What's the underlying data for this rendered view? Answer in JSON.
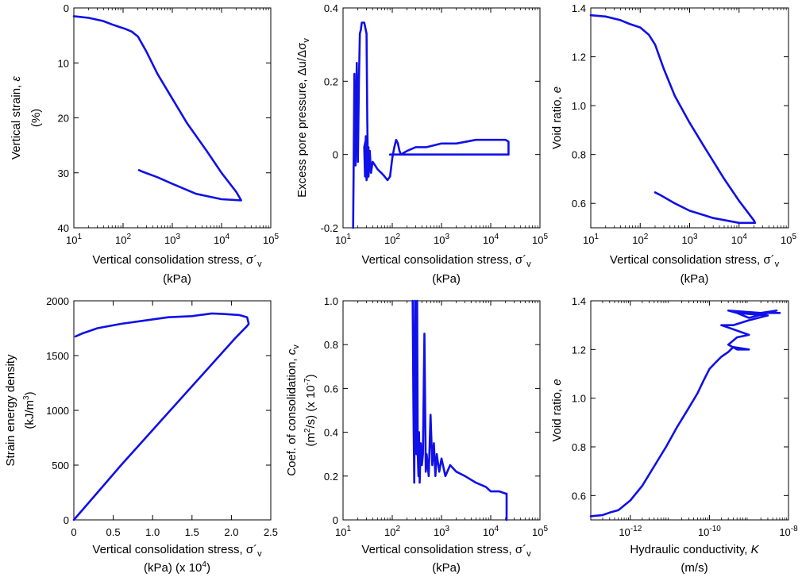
{
  "style": {
    "line_color": "#1010e8",
    "axis_color": "#000000",
    "background": "#ffffff"
  },
  "chart_data": [
    {
      "id": "p1",
      "type": "line",
      "xscale": "log",
      "xlim": [
        10,
        100000
      ],
      "yscale": "linear",
      "ylim": [
        0,
        40
      ],
      "yinvert": true,
      "xticks": [
        {
          "v": 10,
          "base": "10",
          "exp": "1"
        },
        {
          "v": 100,
          "base": "10",
          "exp": "2"
        },
        {
          "v": 1000,
          "base": "10",
          "exp": "3"
        },
        {
          "v": 10000,
          "base": "10",
          "exp": "4"
        },
        {
          "v": 100000,
          "base": "10",
          "exp": "5"
        }
      ],
      "yticks": [
        {
          "v": 0,
          "t": "0"
        },
        {
          "v": 10,
          "t": "10"
        },
        {
          "v": 20,
          "t": "20"
        },
        {
          "v": 30,
          "t": "30"
        },
        {
          "v": 40,
          "t": "40"
        }
      ],
      "xlabel": [
        {
          "type": "sigma",
          "text": "Vertical consolidation stress, σ´",
          "sub": "v"
        },
        {
          "text": "(kPa)"
        }
      ],
      "ylabel": [
        {
          "text": "Vertical strain, ",
          "italic": "ε"
        },
        {
          "text": "(%)"
        }
      ],
      "grid": false,
      "series": [
        {
          "x": [
            10,
            20,
            40,
            60,
            80,
            110,
            150,
            200,
            300,
            500,
            1000,
            2000,
            5000,
            10000,
            20000,
            25000,
            10000,
            3000,
            1000,
            500,
            250,
            210
          ],
          "y": [
            1.5,
            1.8,
            2.4,
            3.0,
            3.4,
            3.8,
            4.3,
            5.2,
            8.0,
            12.0,
            16.5,
            21.0,
            26.0,
            30.0,
            33.5,
            35.0,
            34.8,
            33.8,
            32.0,
            30.8,
            29.8,
            29.5
          ]
        }
      ]
    },
    {
      "id": "p2",
      "type": "line",
      "xscale": "log",
      "xlim": [
        10,
        100000
      ],
      "yscale": "linear",
      "ylim": [
        -0.2,
        0.4
      ],
      "xticks": [
        {
          "v": 10,
          "base": "10",
          "exp": "1"
        },
        {
          "v": 100,
          "base": "10",
          "exp": "2"
        },
        {
          "v": 1000,
          "base": "10",
          "exp": "3"
        },
        {
          "v": 10000,
          "base": "10",
          "exp": "4"
        },
        {
          "v": 100000,
          "base": "10",
          "exp": "5"
        }
      ],
      "yticks": [
        {
          "v": -0.2,
          "t": "-0.2"
        },
        {
          "v": 0,
          "t": "0"
        },
        {
          "v": 0.2,
          "t": "0.2"
        },
        {
          "v": 0.4,
          "t": "0.4"
        }
      ],
      "xlabel": [
        {
          "type": "sigma",
          "text": "Vertical consolidation stress, σ´",
          "sub": "v"
        },
        {
          "text": "(kPa)"
        }
      ],
      "ylabel": [
        {
          "text": "Excess pore pressure, Δu/Δσ",
          "sub": "v"
        }
      ],
      "grid": false,
      "series": [
        {
          "x": [
            16,
            16.5,
            17,
            17.5,
            18,
            19,
            20,
            21,
            22,
            23,
            24,
            25,
            26,
            27,
            28,
            30,
            31,
            32,
            33,
            32,
            30,
            29,
            28,
            27,
            29,
            30,
            31,
            33,
            35,
            37,
            40,
            45,
            50,
            60,
            70,
            80,
            90,
            100,
            110,
            120,
            130,
            140,
            150,
            200,
            300,
            500,
            1000,
            2000,
            5000,
            10000,
            20000,
            23000,
            23000,
            10000,
            1000,
            100,
            90
          ],
          "y": [
            -0.2,
            0.0,
            0.22,
            0.05,
            -0.03,
            0.25,
            -0.02,
            0.2,
            0.33,
            0.34,
            0.36,
            0.36,
            0.36,
            0.36,
            0.35,
            0.33,
            0.1,
            -0.03,
            0.02,
            -0.05,
            -0.07,
            0.05,
            -0.06,
            0.02,
            0.04,
            -0.04,
            0.03,
            -0.06,
            0.01,
            -0.05,
            -0.02,
            -0.03,
            -0.04,
            -0.05,
            -0.06,
            -0.07,
            -0.06,
            -0.01,
            0.02,
            0.04,
            0.03,
            0.01,
            0.0,
            0.01,
            0.02,
            0.02,
            0.03,
            0.03,
            0.04,
            0.04,
            0.04,
            0.035,
            0.0,
            0.0,
            0.0,
            0.0,
            0.0
          ]
        }
      ]
    },
    {
      "id": "p3",
      "type": "line",
      "xscale": "log",
      "xlim": [
        10,
        100000
      ],
      "yscale": "linear",
      "ylim": [
        0.5,
        1.4
      ],
      "xticks": [
        {
          "v": 10,
          "base": "10",
          "exp": "1"
        },
        {
          "v": 100,
          "base": "10",
          "exp": "2"
        },
        {
          "v": 1000,
          "base": "10",
          "exp": "3"
        },
        {
          "v": 10000,
          "base": "10",
          "exp": "4"
        },
        {
          "v": 100000,
          "base": "10",
          "exp": "5"
        }
      ],
      "yticks": [
        {
          "v": 0.6,
          "t": "0.6"
        },
        {
          "v": 0.8,
          "t": "0.8"
        },
        {
          "v": 1.0,
          "t": "1.0"
        },
        {
          "v": 1.2,
          "t": "1.2"
        },
        {
          "v": 1.4,
          "t": "1.4"
        }
      ],
      "xlabel": [
        {
          "type": "sigma",
          "text": "Vertical consolidation stress, σ´",
          "sub": "v"
        },
        {
          "text": "(kPa)"
        }
      ],
      "ylabel": [
        {
          "text": "Void ratio, ",
          "italic": "e"
        }
      ],
      "grid": false,
      "series": [
        {
          "x": [
            10,
            20,
            40,
            60,
            100,
            150,
            200,
            300,
            500,
            1000,
            2000,
            5000,
            10000,
            20000,
            21000,
            10000,
            3000,
            1000,
            500,
            250,
            200
          ],
          "y": [
            1.37,
            1.365,
            1.35,
            1.335,
            1.32,
            1.29,
            1.25,
            1.15,
            1.04,
            0.93,
            0.83,
            0.7,
            0.61,
            0.53,
            0.52,
            0.52,
            0.54,
            0.57,
            0.6,
            0.635,
            0.645
          ]
        }
      ]
    },
    {
      "id": "p4",
      "type": "line",
      "xscale": "linear",
      "xlim": [
        0,
        2.5
      ],
      "yscale": "linear",
      "ylim": [
        0,
        2000
      ],
      "xticks": [
        {
          "v": 0,
          "t": "0"
        },
        {
          "v": 0.5,
          "t": "0.5"
        },
        {
          "v": 1.0,
          "t": "1.0"
        },
        {
          "v": 1.5,
          "t": "1.5"
        },
        {
          "v": 2.0,
          "t": "2.0"
        },
        {
          "v": 2.5,
          "t": "2.5"
        }
      ],
      "yticks": [
        {
          "v": 0,
          "t": "0"
        },
        {
          "v": 500,
          "t": "500"
        },
        {
          "v": 1000,
          "t": "1000"
        },
        {
          "v": 1500,
          "t": "1500"
        },
        {
          "v": 2000,
          "t": "2000"
        }
      ],
      "xlabel": [
        {
          "type": "sigma",
          "text": "Vertical consolidation stress, σ´",
          "sub": "v"
        },
        {
          "text": "(kPa) (x 10",
          "sup": "4",
          "after": ")"
        }
      ],
      "ylabel": [
        {
          "text": "Strain energy density"
        },
        {
          "text": "(kJ/m",
          "sup": "3",
          "after": ")"
        }
      ],
      "grid": false,
      "series": [
        {
          "x": [
            0,
            0.3,
            0.6,
            0.9,
            1.2,
            1.5,
            1.8,
            2.05,
            2.2,
            2.22,
            2.2,
            2.1,
            1.9,
            1.75,
            1.5,
            1.2,
            0.9,
            0.6,
            0.3,
            0.1,
            0.02
          ],
          "y": [
            0,
            250,
            500,
            740,
            980,
            1220,
            1460,
            1660,
            1770,
            1790,
            1850,
            1870,
            1880,
            1885,
            1860,
            1850,
            1820,
            1790,
            1750,
            1700,
            1675
          ]
        }
      ]
    },
    {
      "id": "p5",
      "type": "line",
      "xscale": "log",
      "xlim": [
        10,
        100000
      ],
      "yscale": "linear",
      "ylim": [
        0,
        1.0
      ],
      "xticks": [
        {
          "v": 10,
          "base": "10",
          "exp": "1"
        },
        {
          "v": 100,
          "base": "10",
          "exp": "2"
        },
        {
          "v": 1000,
          "base": "10",
          "exp": "3"
        },
        {
          "v": 10000,
          "base": "10",
          "exp": "4"
        },
        {
          "v": 100000,
          "base": "10",
          "exp": "5"
        }
      ],
      "yticks": [
        {
          "v": 0,
          "t": "0"
        },
        {
          "v": 0.2,
          "t": "0.2"
        },
        {
          "v": 0.4,
          "t": "0.4"
        },
        {
          "v": 0.6,
          "t": "0.6"
        },
        {
          "v": 0.8,
          "t": "0.8"
        },
        {
          "v": 1.0,
          "t": "1.0"
        }
      ],
      "xlabel": [
        {
          "type": "sigma",
          "text": "Vertical consolidation stress, σ´",
          "sub": "v"
        },
        {
          "text": "(kPa)"
        }
      ],
      "ylabel": [
        {
          "text": "Coef. of consolidation, ",
          "italic": "c",
          "sub": "v"
        },
        {
          "text": "(m",
          "sup": "2",
          "after": "/s) (x 10",
          "sup2": "-7",
          "after2": ")"
        }
      ],
      "grid": false,
      "series": [
        {
          "x": [
            260,
            270,
            280,
            290,
            300,
            310,
            320,
            330,
            340,
            350,
            360,
            380,
            400,
            420,
            450,
            480,
            500,
            550,
            600,
            650,
            700,
            750,
            800,
            900,
            1000,
            1200,
            1500,
            2000,
            3000,
            5000,
            8000,
            10000,
            15000,
            20000,
            21000,
            21000
          ],
          "y": [
            1.0,
            0.5,
            0.17,
            1.0,
            0.6,
            0.3,
            1.0,
            0.3,
            0.2,
            0.4,
            0.17,
            0.35,
            0.25,
            0.3,
            0.85,
            0.22,
            0.3,
            0.2,
            0.48,
            0.25,
            0.35,
            0.2,
            0.3,
            0.22,
            0.28,
            0.2,
            0.25,
            0.22,
            0.2,
            0.17,
            0.15,
            0.13,
            0.13,
            0.12,
            0.12,
            0.0
          ]
        }
      ]
    },
    {
      "id": "p6",
      "type": "line",
      "xscale": "log",
      "xlim": [
        1e-13,
        1e-08
      ],
      "yscale": "linear",
      "ylim": [
        0.5,
        1.4
      ],
      "xticks": [
        {
          "v": 1e-12,
          "base": "10",
          "exp": "-12"
        },
        {
          "v": 1e-10,
          "base": "10",
          "exp": "-10"
        },
        {
          "v": 1e-08,
          "base": "10",
          "exp": "-8"
        }
      ],
      "yticks": [
        {
          "v": 0.6,
          "t": "0.6"
        },
        {
          "v": 0.8,
          "t": "0.8"
        },
        {
          "v": 1.0,
          "t": "1.0"
        },
        {
          "v": 1.2,
          "t": "1.2"
        },
        {
          "v": 1.4,
          "t": "1.4"
        }
      ],
      "xlabel": [
        {
          "text": "Hydraulic conductivity, ",
          "italic": "K"
        },
        {
          "text": "(m/s)"
        }
      ],
      "ylabel": [
        {
          "text": "Void ratio, ",
          "italic": "e"
        }
      ],
      "grid": false,
      "series": [
        {
          "x": [
            1e-13,
            2e-13,
            3e-13,
            5e-13,
            1e-12,
            2e-12,
            4e-12,
            8e-12,
            1.5e-11,
            3e-11,
            5e-11,
            7e-11,
            1e-10,
            1.5e-10,
            2e-10,
            3e-10,
            4e-10,
            1e-09,
            5e-10,
            3e-10,
            5e-10,
            1e-09,
            3e-10,
            2e-10,
            4e-10,
            1e-09,
            3e-09,
            5e-10,
            1e-09,
            5e-09,
            2e-09,
            5e-10,
            3e-10,
            2e-09,
            4e-09,
            6e-09
          ],
          "y": [
            0.515,
            0.52,
            0.53,
            0.54,
            0.58,
            0.64,
            0.72,
            0.8,
            0.88,
            0.96,
            1.02,
            1.07,
            1.12,
            1.15,
            1.17,
            1.19,
            1.21,
            1.2,
            1.2,
            1.22,
            1.25,
            1.26,
            1.29,
            1.3,
            1.3,
            1.32,
            1.34,
            1.35,
            1.33,
            1.36,
            1.35,
            1.35,
            1.36,
            1.35,
            1.35,
            1.35
          ]
        }
      ]
    }
  ]
}
